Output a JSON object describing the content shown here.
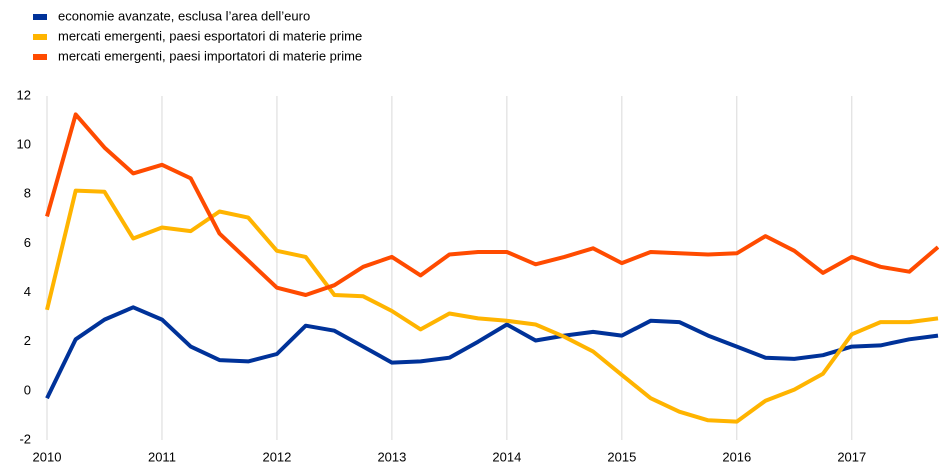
{
  "chart_data": {
    "type": "line",
    "x": [
      2010,
      2010.25,
      2010.5,
      2010.75,
      2011,
      2011.25,
      2011.5,
      2011.75,
      2012,
      2012.25,
      2012.5,
      2012.75,
      2013,
      2013.25,
      2013.5,
      2013.75,
      2014,
      2014.25,
      2014.5,
      2014.75,
      2015,
      2015.25,
      2015.5,
      2015.75,
      2016,
      2016.25,
      2016.5,
      2016.75,
      2017,
      2017.25,
      2017.5,
      2017.75
    ],
    "series": [
      {
        "name": "economie avanzate, esclusa l’area dell’euro",
        "color": "#003299",
        "values": [
          -0.3,
          2.1,
          2.9,
          3.4,
          2.9,
          1.8,
          1.25,
          1.2,
          1.5,
          2.65,
          2.45,
          1.8,
          1.15,
          1.2,
          1.35,
          2.0,
          2.7,
          2.05,
          2.25,
          2.4,
          2.25,
          2.85,
          2.8,
          2.25,
          1.8,
          1.35,
          1.3,
          1.45,
          1.8,
          1.85,
          2.1,
          2.25
        ]
      },
      {
        "name": "mercati emergenti, paesi esportatori di materie prime",
        "color": "#ffb400",
        "values": [
          3.3,
          8.15,
          8.1,
          6.2,
          6.65,
          6.5,
          7.3,
          7.05,
          5.7,
          5.45,
          3.9,
          3.85,
          3.25,
          2.5,
          3.15,
          2.95,
          2.85,
          2.7,
          2.2,
          1.6,
          0.65,
          -0.3,
          -0.85,
          -1.2,
          -1.25,
          -0.4,
          0.05,
          0.7,
          2.3,
          2.8,
          2.8,
          2.95
        ]
      },
      {
        "name": "mercati emergenti, paesi importatori di materie prime",
        "color": "#ff4b00",
        "values": [
          7.1,
          11.25,
          9.9,
          8.85,
          9.2,
          8.65,
          6.4,
          5.3,
          4.2,
          3.9,
          4.3,
          5.05,
          5.45,
          4.7,
          5.55,
          5.65,
          5.65,
          5.15,
          5.45,
          5.8,
          5.2,
          5.65,
          5.6,
          5.55,
          5.6,
          6.3,
          5.7,
          4.8,
          5.45,
          5.05,
          4.85,
          5.85
        ]
      }
    ],
    "xlim": [
      2010,
      2017.75
    ],
    "xticks": [
      2010,
      2011,
      2012,
      2013,
      2014,
      2015,
      2016,
      2017
    ],
    "ylim": [
      -2,
      12
    ],
    "yticks": [
      -2,
      0,
      2,
      4,
      6,
      8,
      10,
      12
    ],
    "grid": "x",
    "legend": "top-left"
  }
}
